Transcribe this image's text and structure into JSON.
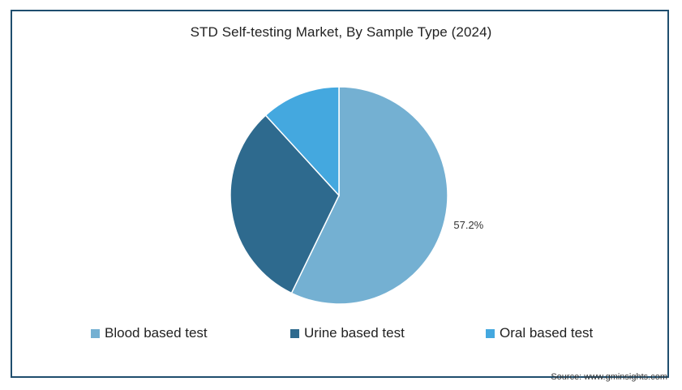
{
  "chart_data": {
    "type": "pie",
    "title": "STD Self-testing Market, By Sample Type (2024)",
    "categories": [
      "Blood based test",
      "Urine based test",
      "Oral based test"
    ],
    "values": [
      57.2,
      31.0,
      11.8
    ],
    "colors": [
      "#74b0d2",
      "#2e6a8e",
      "#44a8df"
    ],
    "data_labels": [
      "57.2%",
      "",
      ""
    ],
    "legend_position": "bottom"
  },
  "legend": {
    "items": [
      {
        "label": "Blood based test",
        "color": "#74b0d2"
      },
      {
        "label": "Urine based test",
        "color": "#2e6a8e"
      },
      {
        "label": "Oral based test",
        "color": "#44a8df"
      }
    ]
  },
  "source": "Source: www.gminsights.com",
  "colors": {
    "border": "#1f4e6e",
    "text": "#222222"
  }
}
